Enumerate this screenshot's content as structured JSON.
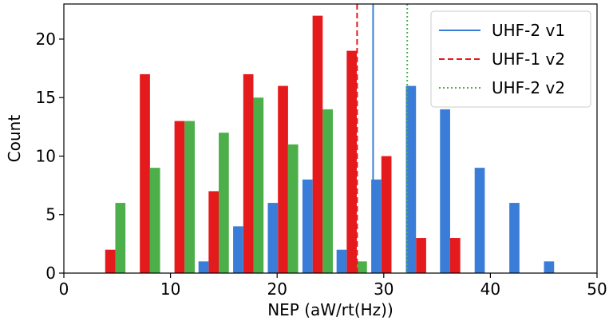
{
  "chart_data": {
    "type": "bar",
    "title": "",
    "xlabel": "NEP (aW/rt(Hz))",
    "ylabel": "Count",
    "xlim": [
      0,
      50
    ],
    "ylim": [
      0,
      23
    ],
    "xticks": [
      0,
      10,
      20,
      30,
      40,
      50
    ],
    "yticks": [
      0,
      5,
      10,
      15,
      20
    ],
    "grid": false,
    "legend_position": "top-right",
    "bin_width": 0.95,
    "histograms": [
      {
        "color": "#e41a1c",
        "bins": [
          {
            "x": 4.35,
            "count": 2
          },
          {
            "x": 7.6,
            "count": 17
          },
          {
            "x": 10.85,
            "count": 13
          },
          {
            "x": 14.05,
            "count": 7
          },
          {
            "x": 17.3,
            "count": 17
          },
          {
            "x": 20.55,
            "count": 16
          },
          {
            "x": 23.8,
            "count": 22
          },
          {
            "x": 27.0,
            "count": 19
          },
          {
            "x": 30.25,
            "count": 10
          },
          {
            "x": 33.5,
            "count": 3
          },
          {
            "x": 36.7,
            "count": 3
          }
        ]
      },
      {
        "color": "#4daf4a",
        "bins": [
          {
            "x": 5.3,
            "count": 6
          },
          {
            "x": 8.55,
            "count": 9
          },
          {
            "x": 11.8,
            "count": 13
          },
          {
            "x": 15.0,
            "count": 12
          },
          {
            "x": 18.25,
            "count": 15
          },
          {
            "x": 21.5,
            "count": 11
          },
          {
            "x": 24.75,
            "count": 14
          },
          {
            "x": 27.95,
            "count": 1
          }
        ]
      },
      {
        "color": "#3a7dd8",
        "bins": [
          {
            "x": 13.1,
            "count": 1
          },
          {
            "x": 16.35,
            "count": 4
          },
          {
            "x": 19.6,
            "count": 6
          },
          {
            "x": 22.85,
            "count": 8
          },
          {
            "x": 26.05,
            "count": 2
          },
          {
            "x": 29.3,
            "count": 8
          },
          {
            "x": 32.55,
            "count": 16
          },
          {
            "x": 35.75,
            "count": 14
          },
          {
            "x": 39.0,
            "count": 9
          },
          {
            "x": 42.25,
            "count": 6
          },
          {
            "x": 45.5,
            "count": 1
          }
        ]
      }
    ],
    "vlines": [
      {
        "x": 29.0,
        "color": "#3a7dd8",
        "style": "solid"
      },
      {
        "x": 27.5,
        "color": "#e41a1c",
        "style": "dashed"
      },
      {
        "x": 32.2,
        "color": "#4daf4a",
        "style": "dotted"
      }
    ],
    "legend": [
      {
        "label": "UHF-2 v1",
        "color": "#3a7dd8",
        "style": "solid"
      },
      {
        "label": "UHF-1 v2",
        "color": "#e41a1c",
        "style": "dashed"
      },
      {
        "label": "UHF-2 v2",
        "color": "#4daf4a",
        "style": "dotted"
      }
    ]
  }
}
